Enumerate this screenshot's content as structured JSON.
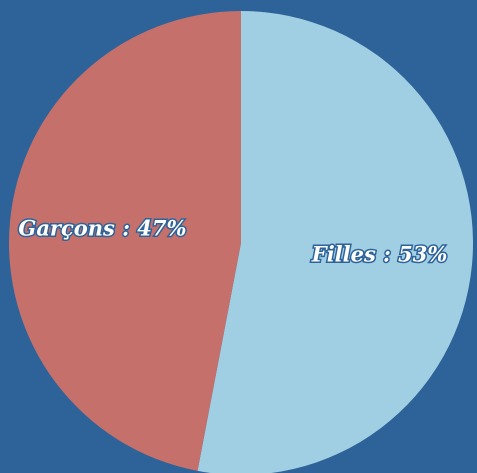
{
  "chart_data": {
    "type": "pie",
    "values": [
      53,
      47
    ],
    "value_labels": [
      "Filles : 53%",
      "Garçons : 47%"
    ],
    "colors": [
      "#a0cfe4",
      "#c5706b"
    ]
  }
}
